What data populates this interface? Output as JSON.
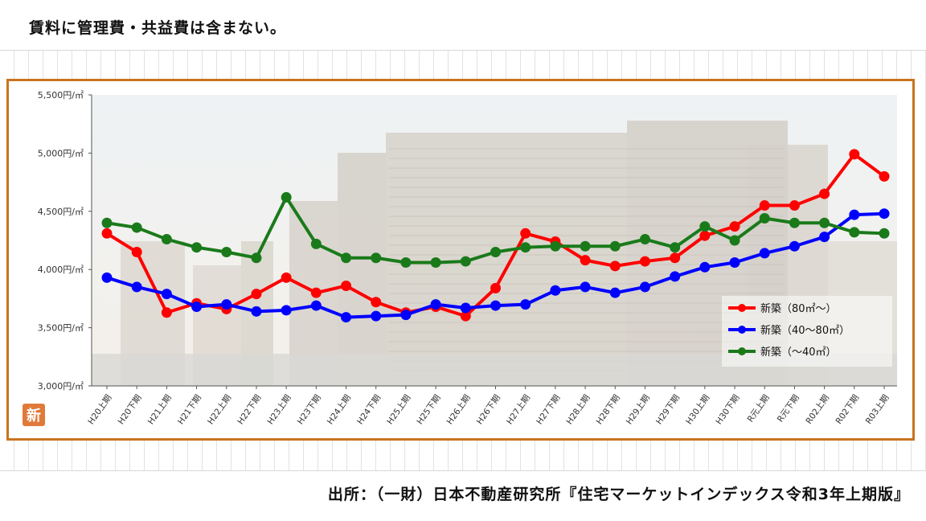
{
  "header_note": "賃料に管理費・共益費は含まない。",
  "source_text": "出所：（一財）日本不動産研究所『住宅マーケットインデックス令和3年上期版』",
  "badge_text": "新",
  "colors": {
    "frame": "#c8741f",
    "red": "#ff0000",
    "blue": "#0000ff",
    "green": "#1a7a1a"
  },
  "chart_data": {
    "type": "line",
    "categories": [
      "H20上期",
      "H20下期",
      "H21上期",
      "H21下期",
      "H22上期",
      "H22下期",
      "H23上期",
      "H23下期",
      "H24上期",
      "H24下期",
      "H25上期",
      "H25下期",
      "H26上期",
      "H26下期",
      "H27上期",
      "H27下期",
      "H28上期",
      "H28下期",
      "H29上期",
      "H29下期",
      "H30上期",
      "H30下期",
      "R元上期",
      "R元下期",
      "R02上期",
      "R02下期",
      "R03上期"
    ],
    "y_tick_labels": [
      "5,500円/㎡",
      "5,000円/㎡",
      "4,500円/㎡",
      "4,000円/㎡",
      "3,500円/㎡",
      "3,000円/㎡"
    ],
    "y_ticks": [
      5500,
      5000,
      4500,
      4000,
      3500,
      3000
    ],
    "ylim": [
      3000,
      5500
    ],
    "legend_position": "bottom-right",
    "series": [
      {
        "name": "新築（80㎡～）",
        "color": "#ff0000",
        "values": [
          4310,
          4150,
          3630,
          3710,
          3660,
          3790,
          3930,
          3800,
          3860,
          3720,
          3630,
          3680,
          3600,
          3840,
          4310,
          4240,
          4080,
          4030,
          4070,
          4100,
          4290,
          4370,
          4550,
          4550,
          4650,
          4990,
          4800
        ]
      },
      {
        "name": "新築（40～80㎡）",
        "color": "#0000ff",
        "values": [
          3930,
          3850,
          3790,
          3680,
          3700,
          3640,
          3650,
          3690,
          3590,
          3600,
          3610,
          3700,
          3670,
          3690,
          3700,
          3820,
          3850,
          3800,
          3850,
          3940,
          4020,
          4060,
          4140,
          4200,
          4280,
          4470,
          4480
        ]
      },
      {
        "name": "新築（～40㎡）",
        "color": "#1a7a1a",
        "values": [
          4400,
          4360,
          4260,
          4190,
          4150,
          4100,
          4620,
          4220,
          4100,
          4100,
          4060,
          4060,
          4070,
          4150,
          4190,
          4200,
          4200,
          4200,
          4260,
          4190,
          4370,
          4250,
          4440,
          4400,
          4400,
          4320,
          4310
        ]
      }
    ]
  }
}
